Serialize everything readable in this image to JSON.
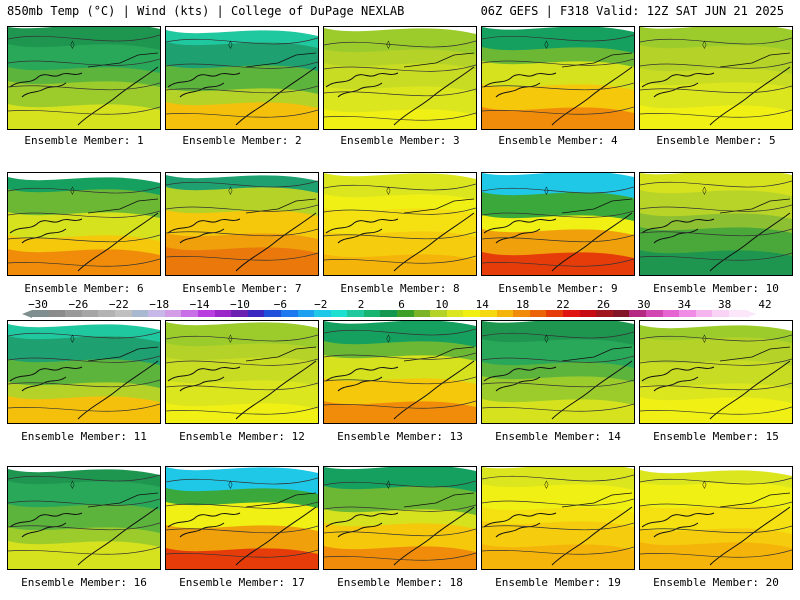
{
  "header": {
    "left": "850mb Temp (°C) | Wind (kts) | College of DuPage NEXLAB",
    "right": "06Z GEFS | F318 Valid: 12Z SAT JUN 21 2025"
  },
  "panel_label_prefix": "Ensemble Member:",
  "panels": [
    {
      "label": "Ensemble Member: 1",
      "style": "cool"
    },
    {
      "label": "Ensemble Member: 2",
      "style": "mixedN"
    },
    {
      "label": "Ensemble Member: 3",
      "style": "mild"
    },
    {
      "label": "Ensemble Member: 4",
      "style": "warmS"
    },
    {
      "label": "Ensemble Member: 5",
      "style": "mild"
    },
    {
      "label": "Ensemble Member: 6",
      "style": "warmS"
    },
    {
      "label": "Ensemble Member: 7",
      "style": "warm"
    },
    {
      "label": "Ensemble Member: 8",
      "style": "yellow"
    },
    {
      "label": "Ensemble Member: 9",
      "style": "hot"
    },
    {
      "label": "Ensemble Member: 10",
      "style": "coolE"
    },
    {
      "label": "Ensemble Member: 11",
      "style": "mixedN"
    },
    {
      "label": "Ensemble Member: 12",
      "style": "mild"
    },
    {
      "label": "Ensemble Member: 13",
      "style": "warmS"
    },
    {
      "label": "Ensemble Member: 14",
      "style": "cool"
    },
    {
      "label": "Ensemble Member: 15",
      "style": "mild"
    },
    {
      "label": "Ensemble Member: 16",
      "style": "cool"
    },
    {
      "label": "Ensemble Member: 17",
      "style": "hot"
    },
    {
      "label": "Ensemble Member: 18",
      "style": "warmS"
    },
    {
      "label": "Ensemble Member: 19",
      "style": "yellow"
    },
    {
      "label": "Ensemble Member: 20",
      "style": "yellow"
    }
  ],
  "colorbar": {
    "ticks": [
      "−30",
      "−26",
      "−22",
      "−18",
      "−14",
      "−10",
      "−6",
      "−2",
      "2",
      "6",
      "10",
      "14",
      "18",
      "22",
      "26",
      "30",
      "34",
      "38",
      "42"
    ],
    "colors": [
      "#7f8f8f",
      "#8c8c8c",
      "#9a9a9a",
      "#a6a6a6",
      "#b3b3b3",
      "#c0c0c0",
      "#a9b9cf",
      "#c8b8e8",
      "#d49be6",
      "#c86ee6",
      "#b83ee0",
      "#9a28c8",
      "#6a20b0",
      "#3a28c0",
      "#1e50dc",
      "#1e78f0",
      "#1ea0f0",
      "#1ec8e6",
      "#1ee0d0",
      "#20c8a0",
      "#16b46e",
      "#129650",
      "#3ca028",
      "#7cb428",
      "#b4d228",
      "#dce61e",
      "#f0f014",
      "#f5d80e",
      "#f5b40a",
      "#f08c0a",
      "#eb640a",
      "#e63c0a",
      "#e11414",
      "#c80a14",
      "#a0141e",
      "#821428",
      "#b42882",
      "#d246b4",
      "#e664d2",
      "#f08ce6",
      "#f5b4ee",
      "#fad2f5",
      "#fce6fa"
    ]
  },
  "palettes": {
    "cool": [
      "#1e9650",
      "#2aa85a",
      "#5cb43c",
      "#9ccc2c",
      "#d6e21e"
    ],
    "coolE": [
      "#d6e21e",
      "#b8d428",
      "#8cc032",
      "#4aa83a",
      "#1e9650"
    ],
    "mixedN": [
      "#20c8a0",
      "#1ea070",
      "#5cb43c",
      "#b4d228",
      "#f5c00c"
    ],
    "mild": [
      "#9ccc2c",
      "#b4d228",
      "#c8dc24",
      "#dce61e",
      "#f0f014"
    ],
    "warmS": [
      "#16a060",
      "#6cb834",
      "#d6e21e",
      "#f5c80c",
      "#f08c0a"
    ],
    "warm": [
      "#1ea070",
      "#b4d228",
      "#f5c80c",
      "#f0a00a",
      "#eb780a"
    ],
    "yellow": [
      "#dce61e",
      "#f0f014",
      "#f5e012",
      "#f5cc0e",
      "#f5b40a"
    ],
    "hot": [
      "#1ec8e6",
      "#3aa83a",
      "#f0f014",
      "#f0a00a",
      "#e63c0a"
    ]
  }
}
